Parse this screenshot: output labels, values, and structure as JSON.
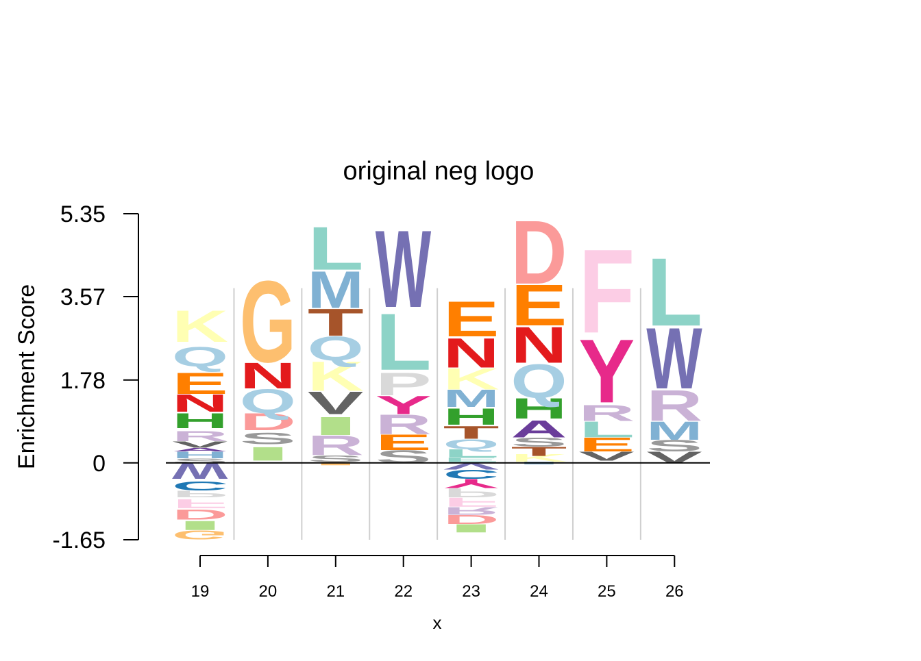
{
  "chart_data": {
    "type": "sequence-logo",
    "title": "original neg logo",
    "xlabel": "x",
    "ylabel": "Enrichment Score",
    "y_ticks": [
      "5.35",
      "3.57",
      "1.78",
      "0",
      "-1.65"
    ],
    "y_tick_values": [
      5.35,
      3.57,
      1.78,
      0,
      -1.65
    ],
    "ylim": [
      -1.65,
      5.35
    ],
    "x_ticks": [
      "19",
      "20",
      "21",
      "22",
      "23",
      "24",
      "25",
      "26"
    ],
    "positions": [
      {
        "pos": 19,
        "positive": [
          {
            "letter": "S",
            "from": 0.0,
            "to": 0.1,
            "color": "#999999"
          },
          {
            "letter": "H",
            "from": 0.1,
            "to": 0.25,
            "color": "#80b1d3"
          },
          {
            "letter": "A",
            "from": 0.25,
            "to": 0.33,
            "color": "#6a3d9a"
          },
          {
            "letter": "V",
            "from": 0.33,
            "to": 0.47,
            "color": "#636363"
          },
          {
            "letter": "R",
            "from": 0.47,
            "to": 0.7,
            "color": "#cab2d6"
          },
          {
            "letter": "H",
            "from": 0.75,
            "to": 1.08,
            "color": "#33a02c"
          },
          {
            "letter": "N",
            "from": 1.1,
            "to": 1.48,
            "color": "#e31a1c"
          },
          {
            "letter": "E",
            "from": 1.48,
            "to": 1.95,
            "color": "#ff7f00"
          },
          {
            "letter": "Q",
            "from": 2.07,
            "to": 2.5,
            "color": "#a6cee3"
          },
          {
            "letter": "K",
            "from": 2.6,
            "to": 3.3,
            "color": "#ffffb3"
          }
        ],
        "negative": [
          {
            "letter": "W",
            "from": 0.0,
            "to": -0.35,
            "color": "#7570b3"
          },
          {
            "letter": "C",
            "from": -0.4,
            "to": -0.6,
            "color": "#1f78b4"
          },
          {
            "letter": "P",
            "from": -0.6,
            "to": -0.75,
            "color": "#d9d9d9"
          },
          {
            "letter": "F",
            "from": -0.78,
            "to": -0.98,
            "color": "#fccde5"
          },
          {
            "letter": "D",
            "from": -1.0,
            "to": -1.23,
            "color": "#fb9a99"
          },
          {
            "letter": "I",
            "from": -1.25,
            "to": -1.45,
            "color": "#b2df8a"
          },
          {
            "letter": "G",
            "from": -1.45,
            "to": -1.65,
            "color": "#fdbf6f"
          }
        ]
      },
      {
        "pos": 20,
        "positive": [
          {
            "letter": "I",
            "from": 0.05,
            "to": 0.35,
            "color": "#b2df8a"
          },
          {
            "letter": "S",
            "from": 0.4,
            "to": 0.65,
            "color": "#999999"
          },
          {
            "letter": "D",
            "from": 0.7,
            "to": 1.07,
            "color": "#fb9a99"
          },
          {
            "letter": "Q",
            "from": 1.07,
            "to": 1.6,
            "color": "#a6cee3"
          },
          {
            "letter": "N",
            "from": 1.6,
            "to": 2.17,
            "color": "#e31a1c"
          },
          {
            "letter": "G",
            "from": 2.17,
            "to": 3.97,
            "color": "#fdbf6f"
          }
        ],
        "negative": []
      },
      {
        "pos": 21,
        "positive": [
          {
            "letter": "I",
            "from": -0.05,
            "to": 0.02,
            "color": "#fdbf6f"
          },
          {
            "letter": "S",
            "from": 0.02,
            "to": 0.17,
            "color": "#999999"
          },
          {
            "letter": "R",
            "from": 0.17,
            "to": 0.6,
            "color": "#cab2d6"
          },
          {
            "letter": "I",
            "from": 0.6,
            "to": 1.0,
            "color": "#b2df8a"
          },
          {
            "letter": "V",
            "from": 1.05,
            "to": 1.55,
            "color": "#636363"
          },
          {
            "letter": "K",
            "from": 1.55,
            "to": 2.2,
            "color": "#ffffb3"
          },
          {
            "letter": "Q",
            "from": 2.2,
            "to": 2.73,
            "color": "#a6cee3"
          },
          {
            "letter": "T",
            "from": 2.73,
            "to": 3.33,
            "color": "#a6542a"
          },
          {
            "letter": "M",
            "from": 3.33,
            "to": 4.15,
            "color": "#80b1d3"
          },
          {
            "letter": "L",
            "from": 4.15,
            "to": 5.1,
            "color": "#8dd3c7"
          }
        ],
        "negative": []
      },
      {
        "pos": 22,
        "positive": [
          {
            "letter": "S",
            "from": 0.0,
            "to": 0.28,
            "color": "#999999"
          },
          {
            "letter": "E",
            "from": 0.28,
            "to": 0.62,
            "color": "#ff7f00"
          },
          {
            "letter": "R",
            "from": 0.62,
            "to": 1.05,
            "color": "#cab2d6"
          },
          {
            "letter": "Y",
            "from": 1.05,
            "to": 1.45,
            "color": "#e7298a"
          },
          {
            "letter": "P",
            "from": 1.45,
            "to": 1.95,
            "color": "#d9d9d9"
          },
          {
            "letter": "L",
            "from": 2.0,
            "to": 3.25,
            "color": "#8dd3c7"
          },
          {
            "letter": "W",
            "from": 3.35,
            "to": 5.05,
            "color": "#7570b3"
          }
        ],
        "negative": []
      },
      {
        "pos": 23,
        "positive": [
          {
            "letter": "E",
            "from": 0.02,
            "to": 0.12,
            "color": "#8dd3c7"
          },
          {
            "letter": "L",
            "from": 0.12,
            "to": 0.3,
            "color": "#8dd3c7"
          },
          {
            "letter": "Q",
            "from": 0.3,
            "to": 0.52,
            "color": "#a6cee3"
          },
          {
            "letter": "T",
            "from": 0.52,
            "to": 0.8,
            "color": "#a6542a"
          },
          {
            "letter": "H",
            "from": 0.82,
            "to": 1.18,
            "color": "#33a02c"
          },
          {
            "letter": "M",
            "from": 1.2,
            "to": 1.58,
            "color": "#80b1d3"
          },
          {
            "letter": "K",
            "from": 1.58,
            "to": 2.05,
            "color": "#ffffb3"
          },
          {
            "letter": "N",
            "from": 2.05,
            "to": 2.7,
            "color": "#e31a1c"
          },
          {
            "letter": "E",
            "from": 2.72,
            "to": 3.5,
            "color": "#ff7f00"
          }
        ],
        "negative": [
          {
            "letter": "V",
            "from": 0.0,
            "to": -0.15,
            "color": "#7570b3"
          },
          {
            "letter": "C",
            "from": -0.15,
            "to": -0.35,
            "color": "#1f78b4"
          },
          {
            "letter": "Y",
            "from": -0.35,
            "to": -0.55,
            "color": "#e7298a"
          },
          {
            "letter": "P",
            "from": -0.55,
            "to": -0.75,
            "color": "#d9d9d9"
          },
          {
            "letter": "F",
            "from": -0.75,
            "to": -0.95,
            "color": "#fccde5"
          },
          {
            "letter": "R",
            "from": -0.95,
            "to": -1.12,
            "color": "#cab2d6"
          },
          {
            "letter": "D",
            "from": -1.12,
            "to": -1.32,
            "color": "#fb9a99"
          },
          {
            "letter": "I",
            "from": -1.32,
            "to": -1.5,
            "color": "#b2df8a"
          }
        ]
      },
      {
        "pos": 24,
        "positive": [
          {
            "letter": "I",
            "from": -0.03,
            "to": 0.03,
            "color": "#80b1d3"
          },
          {
            "letter": "K",
            "from": 0.03,
            "to": 0.2,
            "color": "#ffffb3"
          },
          {
            "letter": "T",
            "from": 0.15,
            "to": 0.35,
            "color": "#a6542a"
          },
          {
            "letter": "S",
            "from": 0.35,
            "to": 0.55,
            "color": "#999999"
          },
          {
            "letter": "A",
            "from": 0.55,
            "to": 0.92,
            "color": "#6a3d9a"
          },
          {
            "letter": "H",
            "from": 0.95,
            "to": 1.4,
            "color": "#33a02c"
          },
          {
            "letter": "Q",
            "from": 1.4,
            "to": 2.15,
            "color": "#a6cee3"
          },
          {
            "letter": "N",
            "from": 2.15,
            "to": 2.95,
            "color": "#e31a1c"
          },
          {
            "letter": "E",
            "from": 2.95,
            "to": 3.85,
            "color": "#ff7f00"
          },
          {
            "letter": "D",
            "from": 3.85,
            "to": 5.25,
            "color": "#fb9a99"
          }
        ],
        "negative": []
      },
      {
        "pos": 25,
        "positive": [
          {
            "letter": "V",
            "from": 0.05,
            "to": 0.25,
            "color": "#636363"
          },
          {
            "letter": "E",
            "from": 0.25,
            "to": 0.55,
            "color": "#ff7f00"
          },
          {
            "letter": "L",
            "from": 0.55,
            "to": 0.9,
            "color": "#8dd3c7"
          },
          {
            "letter": "R",
            "from": 0.9,
            "to": 1.25,
            "color": "#cab2d6"
          },
          {
            "letter": "Y",
            "from": 1.3,
            "to": 2.7,
            "color": "#e7298a"
          },
          {
            "letter": "F",
            "from": 2.8,
            "to": 4.65,
            "color": "#fccde5"
          }
        ],
        "negative": []
      },
      {
        "pos": 26,
        "positive": [
          {
            "letter": "V",
            "from": 0.0,
            "to": 0.25,
            "color": "#636363"
          },
          {
            "letter": "S",
            "from": 0.25,
            "to": 0.5,
            "color": "#999999"
          },
          {
            "letter": "M",
            "from": 0.5,
            "to": 0.9,
            "color": "#80b1d3"
          },
          {
            "letter": "R",
            "from": 0.9,
            "to": 1.58,
            "color": "#cab2d6"
          },
          {
            "letter": "W",
            "from": 1.6,
            "to": 2.95,
            "color": "#7570b3"
          },
          {
            "letter": "L",
            "from": 2.95,
            "to": 4.45,
            "color": "#8dd3c7"
          }
        ],
        "negative": []
      }
    ]
  }
}
